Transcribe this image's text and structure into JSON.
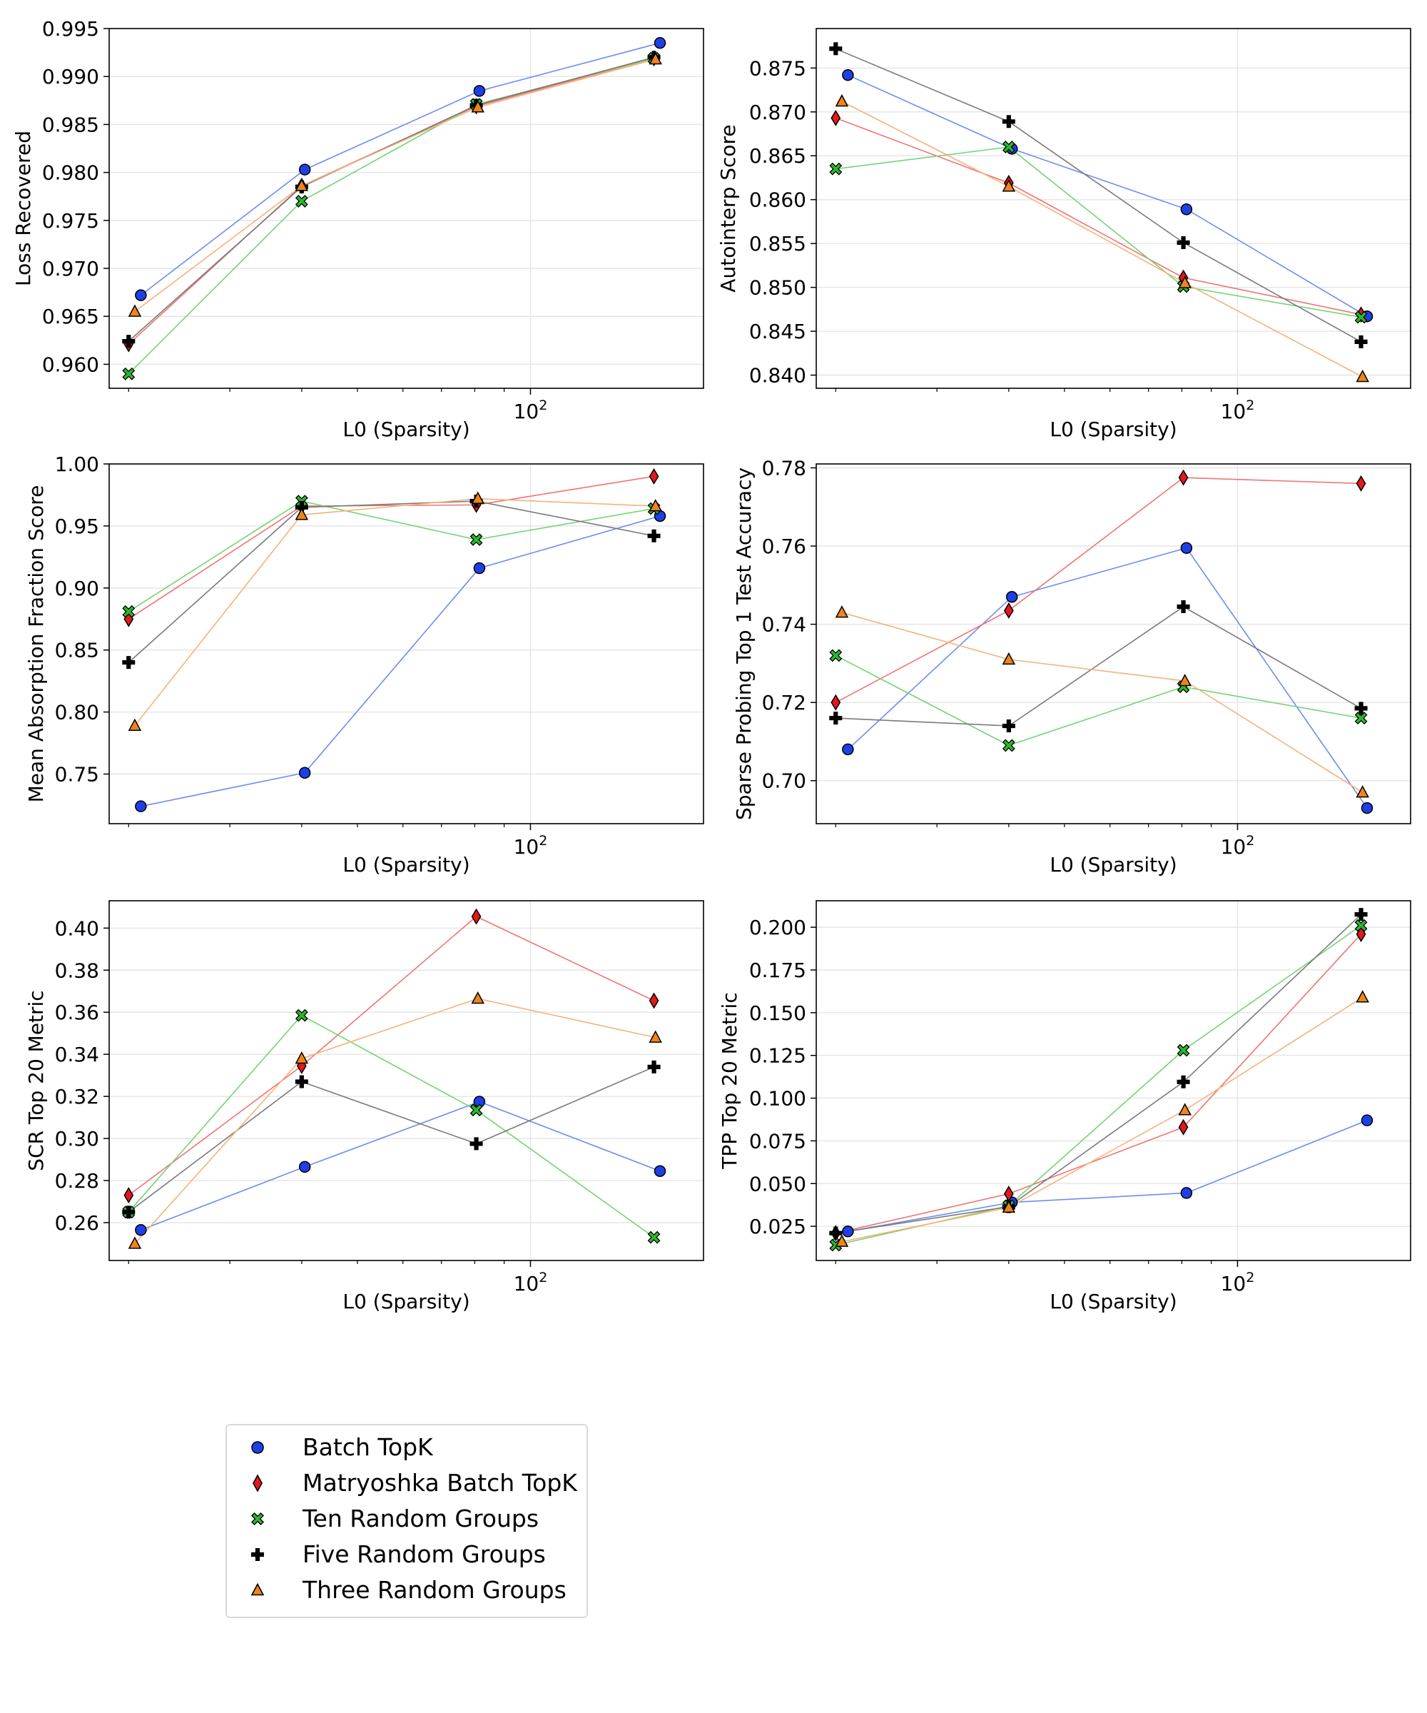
{
  "colors": {
    "batch_topk": "#1f3fe6",
    "matryoshka": "#e3181b",
    "ten_random": "#2cb82c",
    "five_random": "#000000",
    "three_random": "#f0841c",
    "batch_topk_line": "#6f8cf0",
    "matryoshka_line": "#f07373",
    "ten_random_line": "#74d474",
    "five_random_line": "#7a7a7a",
    "three_random_line": "#f5b27a"
  },
  "legend": {
    "items": [
      {
        "key": "batch_topk",
        "label": "Batch TopK",
        "marker": "circle"
      },
      {
        "key": "matryoshka",
        "label": "Matryoshka Batch TopK",
        "marker": "diamond"
      },
      {
        "key": "ten_random",
        "label": "Ten Random Groups",
        "marker": "x"
      },
      {
        "key": "five_random",
        "label": "Five Random Groups",
        "marker": "plus"
      },
      {
        "key": "three_random",
        "label": "Three Random Groups",
        "marker": "triangle"
      }
    ]
  },
  "chart_data": [
    {
      "type": "scatter",
      "title": "",
      "xlabel": "L0 (Sparsity)",
      "ylabel": "Loss Recovered",
      "xscale": "log",
      "xlim": [
        18.5,
        200
      ],
      "ylim": [
        0.9575,
        0.995
      ],
      "x_ticks": [
        {
          "value": 100,
          "label": "10",
          "exp": "2"
        }
      ],
      "y_ticks": [
        0.96,
        0.965,
        0.97,
        0.975,
        0.98,
        0.985,
        0.99,
        0.995
      ],
      "y_tick_labels": [
        "0.960",
        "0.965",
        "0.970",
        "0.975",
        "0.980",
        "0.985",
        "0.990",
        "0.995"
      ],
      "series": [
        {
          "key": "batch_topk",
          "x": [
            21,
            40.5,
            81.5,
            168
          ],
          "values": [
            0.9672,
            0.9803,
            0.9885,
            0.9935
          ]
        },
        {
          "key": "matryoshka",
          "x": [
            20,
            40,
            80.5,
            164
          ],
          "values": [
            0.9621,
            0.9786,
            0.9869,
            0.9919
          ]
        },
        {
          "key": "ten_random",
          "x": [
            20,
            40,
            80.5,
            164
          ],
          "values": [
            0.959,
            0.977,
            0.9871,
            0.9919
          ]
        },
        {
          "key": "five_random",
          "x": [
            20,
            40,
            80.5,
            164
          ],
          "values": [
            0.9624,
            0.9785,
            0.987,
            0.992
          ]
        },
        {
          "key": "three_random",
          "x": [
            20.5,
            40,
            81,
            165
          ],
          "values": [
            0.9655,
            0.9786,
            0.9868,
            0.9918
          ]
        }
      ]
    },
    {
      "type": "scatter",
      "title": "",
      "xlabel": "L0 (Sparsity)",
      "ylabel": "Autointerp Score",
      "xscale": "log",
      "xlim": [
        18.5,
        200
      ],
      "ylim": [
        0.8385,
        0.8795
      ],
      "x_ticks": [
        {
          "value": 100,
          "label": "10",
          "exp": "2"
        }
      ],
      "y_ticks": [
        0.84,
        0.845,
        0.85,
        0.855,
        0.86,
        0.865,
        0.87,
        0.875
      ],
      "y_tick_labels": [
        "0.840",
        "0.845",
        "0.850",
        "0.855",
        "0.860",
        "0.865",
        "0.870",
        "0.875"
      ],
      "series": [
        {
          "key": "batch_topk",
          "x": [
            21,
            40.5,
            81.5,
            168
          ],
          "values": [
            0.8742,
            0.8658,
            0.8589,
            0.8467
          ]
        },
        {
          "key": "matryoshka",
          "x": [
            20,
            40,
            80.5,
            164
          ],
          "values": [
            0.8693,
            0.8619,
            0.8511,
            0.8469
          ]
        },
        {
          "key": "ten_random",
          "x": [
            20,
            40,
            80.5,
            164
          ],
          "values": [
            0.8635,
            0.866,
            0.8501,
            0.8466
          ]
        },
        {
          "key": "five_random",
          "x": [
            20,
            40,
            80.5,
            164
          ],
          "values": [
            0.8772,
            0.8689,
            0.8551,
            0.8438
          ]
        },
        {
          "key": "three_random",
          "x": [
            20.5,
            40,
            81,
            165
          ],
          "values": [
            0.8712,
            0.8615,
            0.8505,
            0.8398
          ]
        }
      ]
    },
    {
      "type": "scatter",
      "title": "",
      "xlabel": "L0 (Sparsity)",
      "ylabel": "Mean Absorption Fraction Score",
      "xscale": "log",
      "xlim": [
        18.5,
        200
      ],
      "ylim": [
        0.71,
        1.0
      ],
      "x_ticks": [
        {
          "value": 100,
          "label": "10",
          "exp": "2"
        }
      ],
      "y_ticks": [
        0.75,
        0.8,
        0.85,
        0.9,
        0.95,
        1.0
      ],
      "y_tick_labels": [
        "0.75",
        "0.80",
        "0.85",
        "0.90",
        "0.95",
        "1.00"
      ],
      "series": [
        {
          "key": "batch_topk",
          "x": [
            21,
            40.5,
            81.5,
            168
          ],
          "values": [
            0.724,
            0.751,
            0.916,
            0.958
          ]
        },
        {
          "key": "matryoshka",
          "x": [
            20,
            40,
            80.5,
            164
          ],
          "values": [
            0.875,
            0.966,
            0.967,
            0.99
          ]
        },
        {
          "key": "ten_random",
          "x": [
            20,
            40,
            80.5,
            164
          ],
          "values": [
            0.881,
            0.97,
            0.939,
            0.964
          ]
        },
        {
          "key": "five_random",
          "x": [
            20,
            40,
            80.5,
            164
          ],
          "values": [
            0.84,
            0.965,
            0.97,
            0.942
          ]
        },
        {
          "key": "three_random",
          "x": [
            20.5,
            40,
            81,
            165
          ],
          "values": [
            0.789,
            0.959,
            0.972,
            0.966
          ]
        }
      ]
    },
    {
      "type": "scatter",
      "title": "",
      "xlabel": "L0 (Sparsity)",
      "ylabel": "Sparse Probing Top 1 Test Accuracy",
      "xscale": "log",
      "xlim": [
        18.5,
        200
      ],
      "ylim": [
        0.689,
        0.781
      ],
      "x_ticks": [
        {
          "value": 100,
          "label": "10",
          "exp": "2"
        }
      ],
      "y_ticks": [
        0.7,
        0.72,
        0.74,
        0.76,
        0.78
      ],
      "y_tick_labels": [
        "0.70",
        "0.72",
        "0.74",
        "0.76",
        "0.78"
      ],
      "series": [
        {
          "key": "batch_topk",
          "x": [
            21,
            40.5,
            81.5,
            168
          ],
          "values": [
            0.708,
            0.747,
            0.7595,
            0.693
          ]
        },
        {
          "key": "matryoshka",
          "x": [
            20,
            40,
            80.5,
            164
          ],
          "values": [
            0.72,
            0.7435,
            0.7775,
            0.776
          ]
        },
        {
          "key": "ten_random",
          "x": [
            20,
            40,
            80.5,
            164
          ],
          "values": [
            0.732,
            0.709,
            0.724,
            0.716
          ]
        },
        {
          "key": "five_random",
          "x": [
            20,
            40,
            80.5,
            164
          ],
          "values": [
            0.716,
            0.714,
            0.7445,
            0.7185
          ]
        },
        {
          "key": "three_random",
          "x": [
            20.5,
            40,
            81,
            165
          ],
          "values": [
            0.743,
            0.731,
            0.7255,
            0.697
          ]
        }
      ]
    },
    {
      "type": "scatter",
      "title": "",
      "xlabel": "L0 (Sparsity)",
      "ylabel": "SCR Top 20 Metric",
      "xscale": "log",
      "xlim": [
        18.5,
        200
      ],
      "ylim": [
        0.242,
        0.413
      ],
      "x_ticks": [
        {
          "value": 100,
          "label": "10",
          "exp": "2"
        }
      ],
      "y_ticks": [
        0.26,
        0.28,
        0.3,
        0.32,
        0.34,
        0.36,
        0.38,
        0.4
      ],
      "y_tick_labels": [
        "0.26",
        "0.28",
        "0.30",
        "0.32",
        "0.34",
        "0.36",
        "0.38",
        "0.40"
      ],
      "series": [
        {
          "key": "batch_topk",
          "x": [
            21,
            40.5,
            81.5,
            168
          ],
          "values": [
            0.2565,
            0.2865,
            0.3175,
            0.2845
          ]
        },
        {
          "key": "matryoshka",
          "x": [
            20,
            40,
            80.5,
            164
          ],
          "values": [
            0.273,
            0.3345,
            0.4055,
            0.3655
          ]
        },
        {
          "key": "ten_random",
          "x": [
            20,
            40,
            80.5,
            164
          ],
          "values": [
            0.265,
            0.3585,
            0.3135,
            0.253
          ]
        },
        {
          "key": "five_random",
          "x": [
            20,
            40,
            80.5,
            164
          ],
          "values": [
            0.265,
            0.327,
            0.2975,
            0.334
          ]
        },
        {
          "key": "three_random",
          "x": [
            20.5,
            40,
            81,
            165
          ],
          "values": [
            0.25,
            0.338,
            0.3665,
            0.348
          ]
        }
      ]
    },
    {
      "type": "scatter",
      "title": "",
      "xlabel": "L0 (Sparsity)",
      "ylabel": "TPP Top 20 Metric",
      "xscale": "log",
      "xlim": [
        18.5,
        200
      ],
      "ylim": [
        0.005,
        0.2155
      ],
      "x_ticks": [
        {
          "value": 100,
          "label": "10",
          "exp": "2"
        }
      ],
      "y_ticks": [
        0.025,
        0.05,
        0.075,
        0.1,
        0.125,
        0.15,
        0.175,
        0.2
      ],
      "y_tick_labels": [
        "0.025",
        "0.050",
        "0.075",
        "0.100",
        "0.125",
        "0.150",
        "0.175",
        "0.200"
      ],
      "series": [
        {
          "key": "batch_topk",
          "x": [
            21,
            40.5,
            81.5,
            168
          ],
          "values": [
            0.022,
            0.039,
            0.0445,
            0.087
          ]
        },
        {
          "key": "matryoshka",
          "x": [
            20,
            40,
            80.5,
            164
          ],
          "values": [
            0.021,
            0.044,
            0.083,
            0.196
          ]
        },
        {
          "key": "ten_random",
          "x": [
            20,
            40,
            80.5,
            164
          ],
          "values": [
            0.014,
            0.037,
            0.128,
            0.201
          ]
        },
        {
          "key": "five_random",
          "x": [
            20,
            40,
            80.5,
            164
          ],
          "values": [
            0.021,
            0.0365,
            0.1095,
            0.2075
          ]
        },
        {
          "key": "three_random",
          "x": [
            20.5,
            40,
            81,
            165
          ],
          "values": [
            0.016,
            0.036,
            0.093,
            0.159
          ]
        }
      ]
    }
  ]
}
